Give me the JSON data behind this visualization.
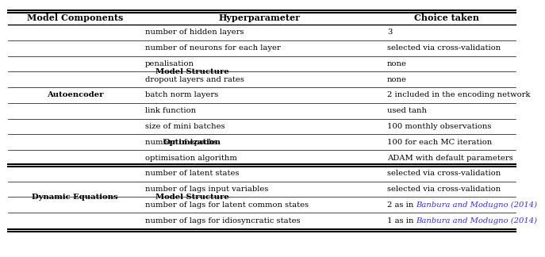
{
  "headers": [
    "Model Components",
    "Hyperparameter",
    "Choice taken"
  ],
  "rows_data": [
    [
      "number of hidden layers",
      "3",
      false
    ],
    [
      "number of neurons for each layer",
      "selected via cross-validation",
      false
    ],
    [
      "penalisation",
      "none",
      false
    ],
    [
      "dropout layers and rates",
      "none",
      false
    ],
    [
      "batch norm layers",
      "2 included in the encoding network",
      false
    ],
    [
      "link function",
      "used tanh",
      false
    ],
    [
      "size of mini batches",
      "100 monthly observations",
      false
    ],
    [
      "number of epochs",
      "100 for each MC iteration",
      false
    ],
    [
      "optimisation algorithm",
      "ADAM with default parameters",
      false
    ],
    [
      "number of latent states",
      "selected via cross-validation",
      false
    ],
    [
      "number of lags input variables",
      "selected via cross-validation",
      false
    ],
    [
      "number of lags for latent common states",
      "2 as in |Banbura and Modugno (2014)",
      true
    ],
    [
      "number of lags for idiosyncratic states",
      "1 as in |Banbura and Modugno (2014)",
      true
    ]
  ],
  "header_fontsize": 8.0,
  "cell_fontsize": 7.2,
  "link_color": "#3333CC",
  "text_color": "#000000",
  "bg_color": "#ffffff"
}
